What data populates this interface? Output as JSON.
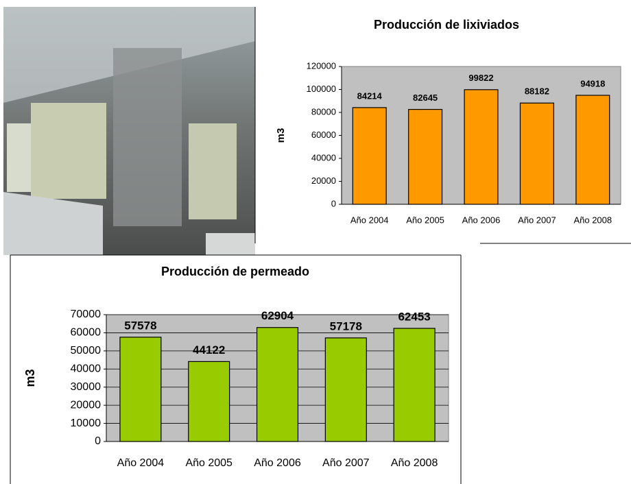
{
  "chart_data": [
    {
      "type": "bar",
      "title": "Producción de lixiviados",
      "y_label": "m3",
      "categories": [
        "Año 2004",
        "Año 2005",
        "Año 2006",
        "Año 2007",
        "Año 2008"
      ],
      "values": [
        84214,
        82645,
        99822,
        88182,
        94918
      ],
      "color": "#ff9900",
      "ylim": [
        0,
        120000
      ],
      "yticks": [
        0,
        20000,
        40000,
        60000,
        80000,
        100000,
        120000
      ],
      "grid": false
    },
    {
      "type": "bar",
      "title": "Producción de permeado",
      "y_label": "m3",
      "categories": [
        "Año 2004",
        "Año 2005",
        "Año 2006",
        "Año 2007",
        "Año 2008"
      ],
      "values": [
        57578,
        44122,
        62904,
        57178,
        62453
      ],
      "color": "#99cc00",
      "ylim": [
        0,
        70000
      ],
      "yticks": [
        0,
        10000,
        20000,
        30000,
        40000,
        50000,
        60000,
        70000
      ],
      "grid": true
    }
  ]
}
